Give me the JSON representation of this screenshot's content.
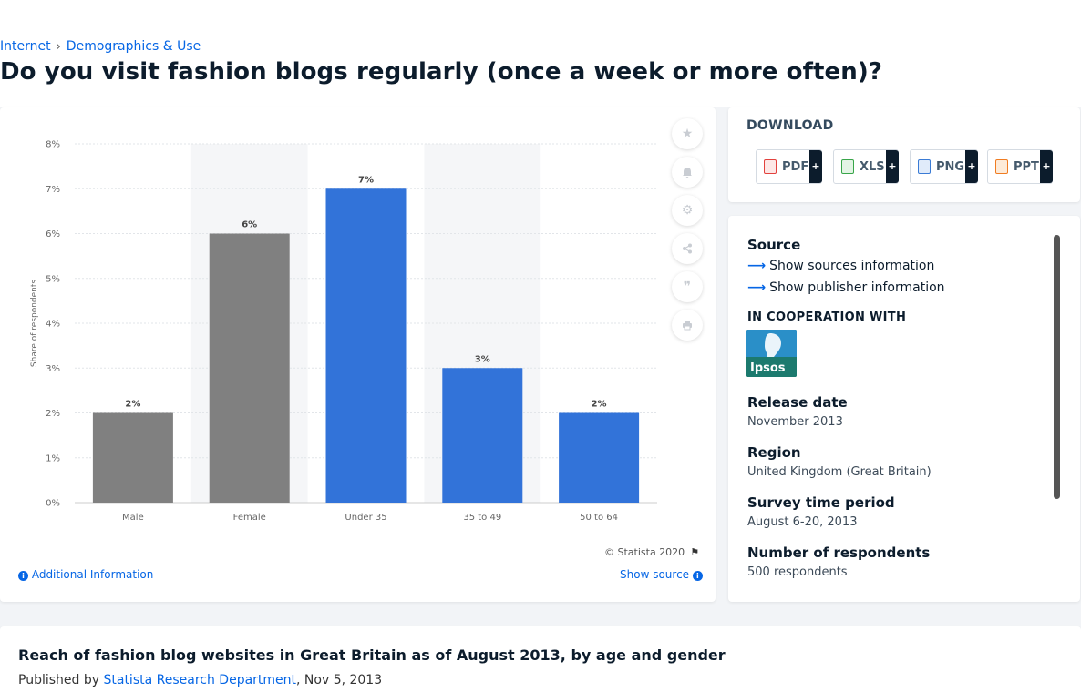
{
  "breadcrumb": [
    "Internet",
    "Demographics & Use"
  ],
  "page_title": "Do you visit fashion blogs regularly (once a week or more often)?",
  "chart_data": {
    "type": "bar",
    "categories": [
      "Male",
      "Female",
      "Under 35",
      "35 to 49",
      "50 to 64"
    ],
    "values": [
      2,
      6,
      7,
      3,
      2
    ],
    "value_labels": [
      "2%",
      "6%",
      "7%",
      "3%",
      "2%"
    ],
    "bar_colors": [
      "#808080",
      "#808080",
      "#3273d9",
      "#3273d9",
      "#3273d9"
    ],
    "ylabel": "Share of respondents",
    "xlabel": "",
    "ylim": [
      0,
      8
    ],
    "yticks": [
      "0%",
      "1%",
      "2%",
      "3%",
      "4%",
      "5%",
      "6%",
      "7%",
      "8%"
    ],
    "grid": true,
    "alternating_band_color": "#f5f6f8"
  },
  "chart_footer": {
    "copyright": "© Statista 2020",
    "additional_info": "Additional Information",
    "show_source": "Show source"
  },
  "download": {
    "title": "DOWNLOAD",
    "buttons": [
      {
        "label": "PDF",
        "icon": "pdf-icon",
        "color": "#e2413d"
      },
      {
        "label": "XLS",
        "icon": "xls-icon",
        "color": "#38a549"
      },
      {
        "label": "PNG",
        "icon": "png-icon",
        "color": "#3a7bd5"
      },
      {
        "label": "PPT",
        "icon": "ppt-icon",
        "color": "#f07c22"
      }
    ],
    "plus": "+"
  },
  "info": {
    "source_label": "Source",
    "show_sources": "Show sources information",
    "show_publisher": "Show publisher information",
    "cooperation": "IN COOPERATION WITH",
    "ipsos_logo_text": "Ipsos",
    "release_label": "Release date",
    "release_value": "November 2013",
    "region_label": "Region",
    "region_value": "United Kingdom (Great Britain)",
    "survey_label": "Survey time period",
    "survey_value": "August 6-20, 2013",
    "respondents_label": "Number of respondents",
    "respondents_value": "500 respondents"
  },
  "bottom": {
    "title": "Reach of fashion blog websites in Great Britain as of August 2013, by age and gender",
    "published_prefix": "Published by",
    "author": "Statista Research Department",
    "date": ", Nov 5, 2013"
  },
  "tools": [
    "star-icon",
    "bell-icon",
    "gear-icon",
    "share-icon",
    "quote-icon",
    "print-icon"
  ]
}
